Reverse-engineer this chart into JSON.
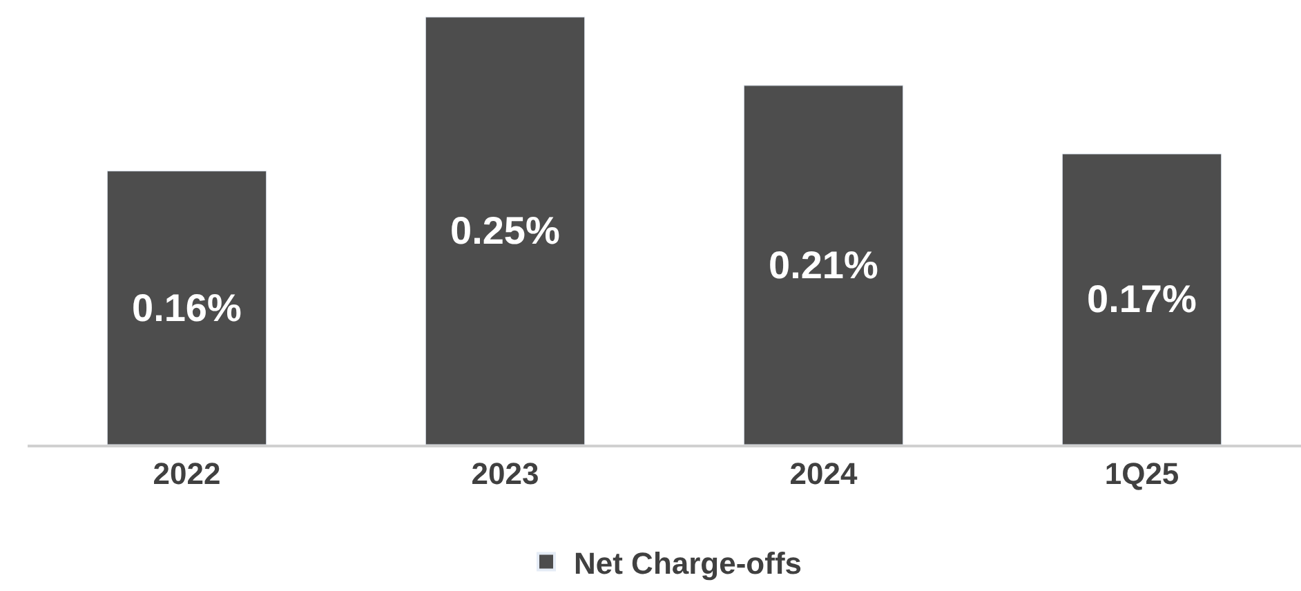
{
  "chart_data": {
    "type": "bar",
    "categories": [
      "2022",
      "2023",
      "2024",
      "1Q25"
    ],
    "series": [
      {
        "name": "Net Charge-offs",
        "color": "#4d4d4d",
        "values": [
          0.16,
          0.25,
          0.21,
          0.17
        ],
        "value_labels": [
          "0.16%",
          "0.25%",
          "0.21%",
          "0.17%"
        ]
      }
    ],
    "ylim": [
      0,
      0.26
    ],
    "tick_labels": "x",
    "legend": "bottom"
  }
}
